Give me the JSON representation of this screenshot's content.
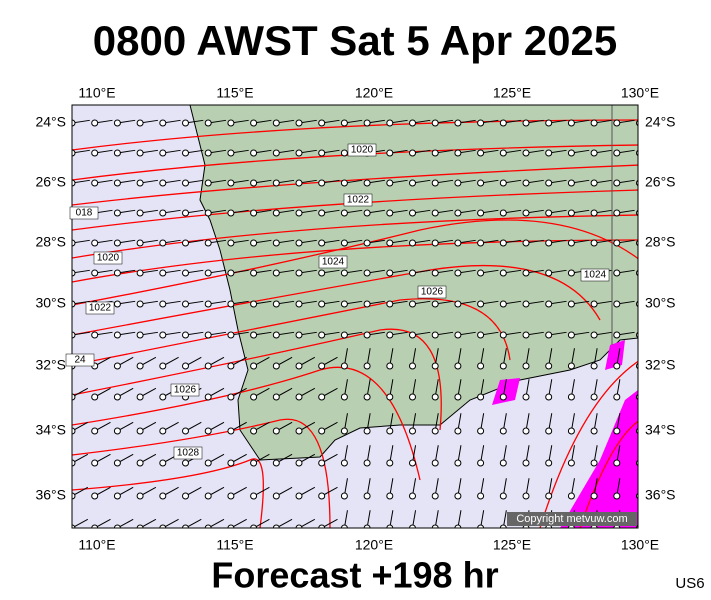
{
  "header": {
    "title": "0800 AWST Sat 5 Apr 2025"
  },
  "map": {
    "lon_labels": [
      "110°E",
      "115°E",
      "120°E",
      "125°E",
      "130°E"
    ],
    "lat_labels": [
      "24°S",
      "26°S",
      "28°S",
      "30°S",
      "32°S",
      "34°S",
      "36°S"
    ],
    "isobar_labels": [
      "1020",
      "1022",
      "1024",
      "1026",
      "1024",
      "018",
      "1020",
      "1022",
      "24",
      "1026",
      "1028"
    ],
    "copyright": "Copyright metvuw.com"
  },
  "footer": {
    "forecast": "Forecast +198 hr",
    "code": "US6"
  }
}
